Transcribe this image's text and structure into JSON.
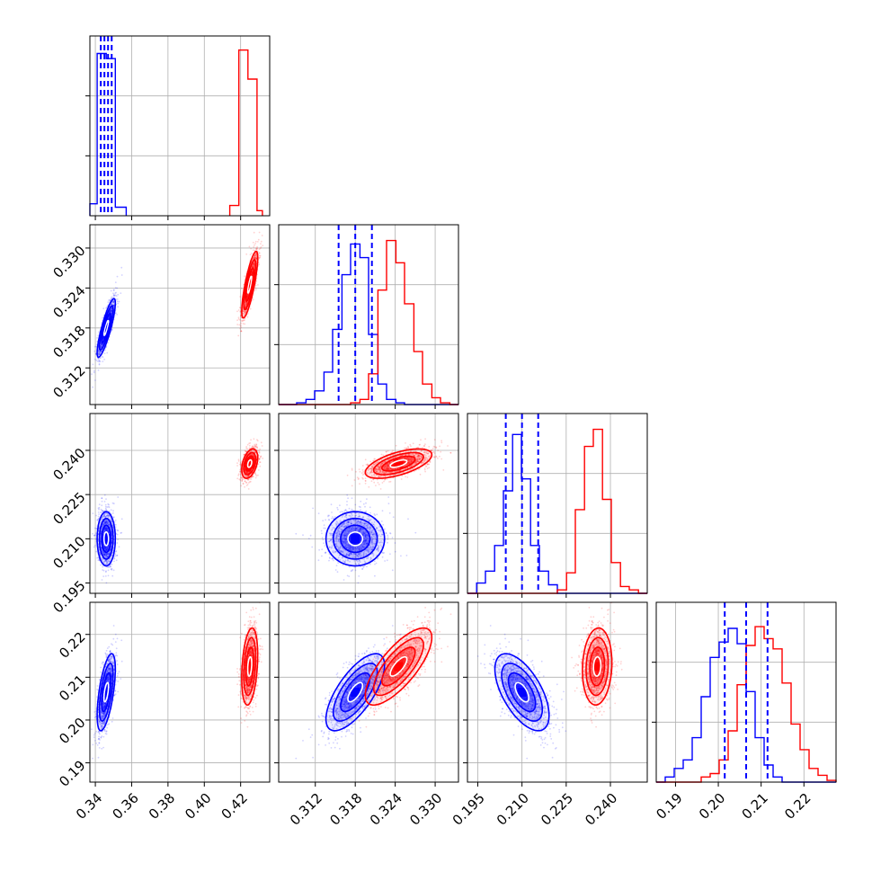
{
  "chart_data": {
    "type": "corner",
    "grid": true,
    "series": [
      {
        "color": "#0000ff"
      },
      {
        "color": "#ff0000"
      }
    ],
    "params": [
      {
        "range": [
          0.337,
          0.436
        ],
        "ticks": [
          0.34,
          0.36,
          0.38,
          0.4,
          0.42
        ],
        "tick_labels": [
          "0.34",
          "0.36",
          "0.38",
          "0.40",
          "0.42"
        ],
        "quantile_lines": [
          0.343,
          0.345,
          0.347,
          0.349
        ],
        "hist": [
          {
            "edges": [
              0.337,
              0.341,
              0.346,
              0.351,
              0.357
            ],
            "counts": [
              0.07,
              0.95,
              0.92,
              0.05
            ]
          },
          {
            "edges": [
              0.414,
              0.419,
              0.424,
              0.429,
              0.432
            ],
            "counts": [
              0.06,
              0.97,
              0.8,
              0.03
            ]
          }
        ]
      },
      {
        "range": [
          0.3065,
          0.3335
        ],
        "ticks": [
          0.312,
          0.318,
          0.324,
          0.33
        ],
        "tick_labels": [
          "0.312",
          "0.318",
          "0.324",
          "0.330"
        ],
        "quantile_lines": [
          0.3155,
          0.318,
          0.3205
        ],
        "hist": [
          {
            "edges": [
              0.3065,
              0.3079,
              0.3092,
              0.3106,
              0.3119,
              0.3133,
              0.3146,
              0.316,
              0.3173,
              0.3187,
              0.32,
              0.3214,
              0.3227,
              0.3241,
              0.3254,
              0.3268,
              0.3281,
              0.3295,
              0.3308,
              0.3322,
              0.3335
            ],
            "counts": [
              0,
              0,
              0.01,
              0.03,
              0.08,
              0.19,
              0.44,
              0.76,
              0.94,
              0.86,
              0.41,
              0.12,
              0.03,
              0.01,
              0,
              0,
              0,
              0,
              0,
              0
            ]
          },
          {
            "edges": [
              0.3065,
              0.3079,
              0.3092,
              0.3106,
              0.3119,
              0.3133,
              0.3146,
              0.316,
              0.3173,
              0.3187,
              0.32,
              0.3214,
              0.3227,
              0.3241,
              0.3254,
              0.3268,
              0.3281,
              0.3295,
              0.3308,
              0.3322,
              0.3335
            ],
            "counts": [
              0,
              0,
              0,
              0,
              0,
              0,
              0,
              0,
              0.01,
              0.03,
              0.18,
              0.67,
              0.96,
              0.83,
              0.59,
              0.31,
              0.12,
              0.04,
              0.01,
              0
            ]
          }
        ]
      },
      {
        "range": [
          0.1915,
          0.2525
        ],
        "ticks": [
          0.195,
          0.21,
          0.225,
          0.24
        ],
        "tick_labels": [
          "0.195",
          "0.210",
          "0.225",
          "0.240"
        ],
        "quantile_lines": [
          0.2045,
          0.21,
          0.2155
        ],
        "hist": [
          {
            "edges": [
              0.1915,
              0.1946,
              0.1976,
              0.2007,
              0.2037,
              0.2068,
              0.2098,
              0.2129,
              0.2159,
              0.219,
              0.222,
              0.2251,
              0.2281,
              0.2312,
              0.2342,
              0.2373,
              0.2403,
              0.2434,
              0.2464,
              0.2495,
              0.2525
            ],
            "counts": [
              0,
              0.06,
              0.13,
              0.28,
              0.6,
              0.93,
              0.67,
              0.28,
              0.13,
              0.05,
              0,
              0,
              0,
              0,
              0,
              0,
              0,
              0,
              0,
              0
            ]
          },
          {
            "edges": [
              0.1915,
              0.1946,
              0.1976,
              0.2007,
              0.2037,
              0.2068,
              0.2098,
              0.2129,
              0.2159,
              0.219,
              0.222,
              0.2251,
              0.2281,
              0.2312,
              0.2342,
              0.2373,
              0.2403,
              0.2434,
              0.2464,
              0.2495,
              0.2525
            ],
            "counts": [
              0,
              0,
              0,
              0,
              0,
              0,
              0,
              0,
              0,
              0,
              0.02,
              0.12,
              0.49,
              0.86,
              0.96,
              0.55,
              0.18,
              0.04,
              0.02,
              0
            ]
          }
        ]
      },
      {
        "range": [
          0.1855,
          0.2275
        ],
        "ticks": [
          0.19,
          0.2,
          0.21,
          0.22
        ],
        "tick_labels": [
          "0.19",
          "0.20",
          "0.21",
          "0.22"
        ],
        "quantile_lines": [
          0.2015,
          0.2065,
          0.2115
        ],
        "hist": [
          {
            "edges": [
              0.1855,
              0.1876,
              0.1897,
              0.1918,
              0.1939,
              0.196,
              0.1981,
              0.2002,
              0.2023,
              0.2044,
              0.2065,
              0.2086,
              0.2107,
              0.2128,
              0.2149,
              0.217,
              0.2191,
              0.2212,
              0.2233,
              0.2254,
              0.2275
            ],
            "counts": [
              0,
              0.03,
              0.08,
              0.13,
              0.26,
              0.5,
              0.73,
              0.82,
              0.9,
              0.81,
              0.53,
              0.26,
              0.1,
              0.03,
              0,
              0,
              0,
              0,
              0,
              0
            ]
          },
          {
            "edges": [
              0.1855,
              0.1876,
              0.1897,
              0.1918,
              0.1939,
              0.196,
              0.1981,
              0.2002,
              0.2023,
              0.2044,
              0.2065,
              0.2086,
              0.2107,
              0.2128,
              0.2149,
              0.217,
              0.2191,
              0.2212,
              0.2233,
              0.2254,
              0.2275
            ],
            "counts": [
              0,
              0,
              0,
              0,
              0,
              0.03,
              0.05,
              0.13,
              0.3,
              0.57,
              0.8,
              0.91,
              0.84,
              0.78,
              0.58,
              0.34,
              0.19,
              0.08,
              0.04,
              0.01
            ]
          }
        ]
      }
    ],
    "posteriors": [
      {
        "mean": [
          0.346,
          0.318,
          0.21,
          0.2065
        ],
        "sd": [
          0.0025,
          0.0022,
          0.0046,
          0.0045
        ],
        "corr": [
          [
            1,
            0.85,
            0.0,
            0.6
          ],
          [
            0.85,
            1,
            0.0,
            0.7
          ],
          [
            0.0,
            0.0,
            1,
            -0.6
          ],
          [
            0.6,
            0.7,
            -0.6,
            1
          ]
        ]
      },
      {
        "mean": [
          0.425,
          0.3245,
          0.2355,
          0.2125
        ],
        "sd": [
          0.0022,
          0.0025,
          0.0025,
          0.0045
        ],
        "corr": [
          [
            1,
            0.8,
            0.4,
            0.3
          ],
          [
            0.8,
            1,
            0.6,
            0.75
          ],
          [
            0.4,
            0.6,
            1,
            0.1
          ],
          [
            0.3,
            0.75,
            0.1,
            1
          ]
        ]
      }
    ]
  }
}
